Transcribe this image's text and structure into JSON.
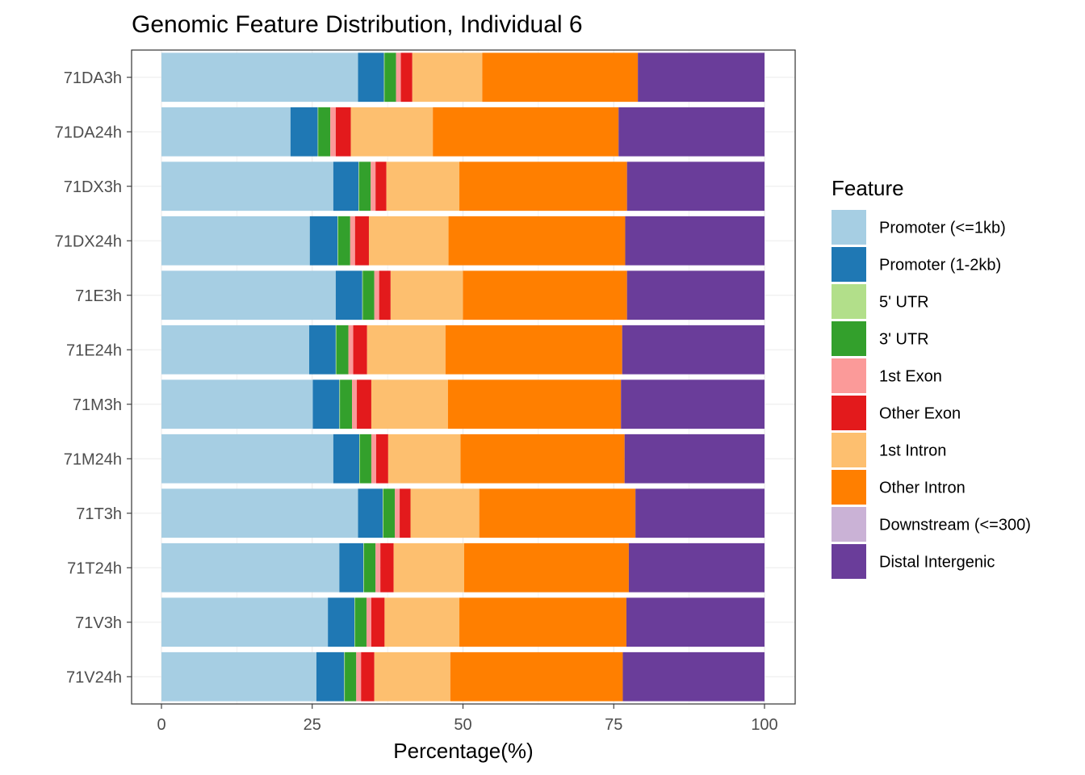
{
  "chart_data": {
    "type": "bar",
    "orientation": "horizontal",
    "stacked": true,
    "title": "Genomic Feature Distribution, Individual 6",
    "xlabel": "Percentage(%)",
    "ylabel": "",
    "xlim": [
      0,
      100
    ],
    "xticks": [
      0,
      25,
      50,
      75,
      100
    ],
    "grid": true,
    "legend": {
      "title": "Feature",
      "position": "right"
    },
    "categories": [
      "71DA3h",
      "71DA24h",
      "71DX3h",
      "71DX24h",
      "71E3h",
      "71E24h",
      "71M3h",
      "71M24h",
      "71T3h",
      "71T24h",
      "71V3h",
      "71V24h"
    ],
    "series": [
      {
        "name": "Promoter (<=1kb)",
        "color": "#A6CEE3",
        "values": [
          32.6,
          21.4,
          28.5,
          24.6,
          28.9,
          24.5,
          25.1,
          28.5,
          32.6,
          29.5,
          27.6,
          25.7
        ]
      },
      {
        "name": "Promoter (1-2kb)",
        "color": "#1F78B4",
        "values": [
          4.3,
          4.5,
          4.2,
          4.6,
          4.4,
          4.4,
          4.4,
          4.3,
          4.1,
          4.0,
          4.4,
          4.6
        ]
      },
      {
        "name": "5' UTR",
        "color": "#B2DF8A",
        "values": [
          0.1,
          0.1,
          0.1,
          0.1,
          0.1,
          0.1,
          0.1,
          0.1,
          0.1,
          0.1,
          0.1,
          0.1
        ]
      },
      {
        "name": "3' UTR",
        "color": "#33A02C",
        "values": [
          1.9,
          2.0,
          1.9,
          2.0,
          1.9,
          2.0,
          2.0,
          1.9,
          1.9,
          1.9,
          1.9,
          1.9
        ]
      },
      {
        "name": "1st Exon",
        "color": "#FB9A99",
        "values": [
          0.8,
          0.9,
          0.8,
          0.8,
          0.8,
          0.8,
          0.8,
          0.8,
          0.8,
          0.8,
          0.8,
          0.8
        ]
      },
      {
        "name": "Other Exon",
        "color": "#E31A1C",
        "values": [
          1.9,
          2.5,
          1.8,
          2.3,
          1.9,
          2.3,
          2.4,
          2.0,
          1.8,
          2.2,
          2.2,
          2.2
        ]
      },
      {
        "name": "1st Intron",
        "color": "#FDBF6F",
        "values": [
          11.6,
          13.6,
          12.1,
          13.2,
          12.0,
          13.0,
          12.7,
          12.0,
          11.4,
          11.7,
          12.4,
          12.6
        ]
      },
      {
        "name": "Other Intron",
        "color": "#FF7F00",
        "values": [
          25.8,
          30.8,
          27.8,
          29.3,
          27.2,
          29.3,
          28.7,
          27.2,
          25.9,
          27.3,
          27.7,
          28.6
        ]
      },
      {
        "name": "Downstream (<=300)",
        "color": "#CAB2D6",
        "values": [
          0.0,
          0.0,
          0.0,
          0.0,
          0.0,
          0.0,
          0.0,
          0.0,
          0.0,
          0.0,
          0.0,
          0.0
        ]
      },
      {
        "name": "Distal Intergenic",
        "color": "#6A3D9A",
        "values": [
          21.0,
          24.2,
          22.8,
          23.1,
          22.8,
          23.6,
          23.8,
          23.2,
          21.4,
          22.5,
          22.9,
          23.5
        ]
      }
    ]
  }
}
